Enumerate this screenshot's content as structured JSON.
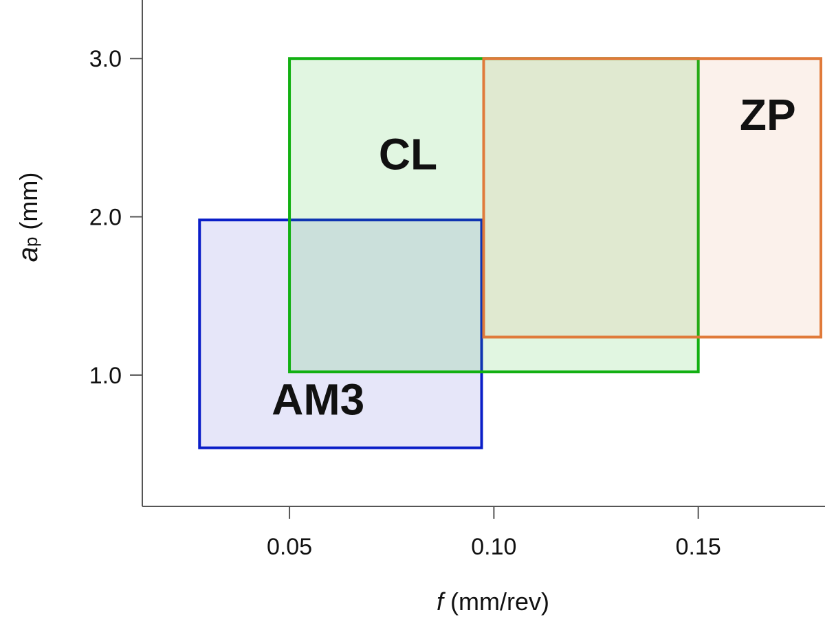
{
  "chart_data": {
    "type": "area",
    "title": "",
    "xlabel_var": "f",
    "xlabel_unit": " (mm/rev)",
    "ylabel_var": "a",
    "ylabel_sub": "p",
    "ylabel_unit": " (mm)",
    "xlim": [
      0.014,
      0.181
    ],
    "ylim": [
      0.17,
      3.37
    ],
    "xticks": [
      {
        "value": 0.05,
        "label": "0.05"
      },
      {
        "value": 0.1,
        "label": "0.10"
      },
      {
        "value": 0.15,
        "label": "0.15"
      }
    ],
    "yticks": [
      {
        "value": 1.0,
        "label": "1.0"
      },
      {
        "value": 2.0,
        "label": "2.0"
      },
      {
        "value": 3.0,
        "label": "3.0"
      }
    ],
    "grid": false,
    "series": [
      {
        "name": "AM3",
        "f": [
          0.028,
          0.097
        ],
        "ap": [
          0.54,
          1.98
        ],
        "stroke": "#0a1ec8",
        "fill": "rgba(60,60,210,0.13)",
        "label_at": [
          0.057,
          0.75
        ]
      },
      {
        "name": "CL",
        "f": [
          0.05,
          0.15
        ],
        "ap": [
          1.02,
          3.0
        ],
        "stroke": "#12b012",
        "fill": "rgba(40,190,40,0.14)",
        "label_at": [
          0.079,
          2.3
        ]
      },
      {
        "name": "ZP",
        "f": [
          0.0975,
          0.18
        ],
        "ap": [
          1.24,
          3.0
        ],
        "stroke": "#e07a3a",
        "fill": "rgba(220,120,60,0.10)",
        "label_at": [
          0.167,
          2.55
        ]
      }
    ]
  }
}
